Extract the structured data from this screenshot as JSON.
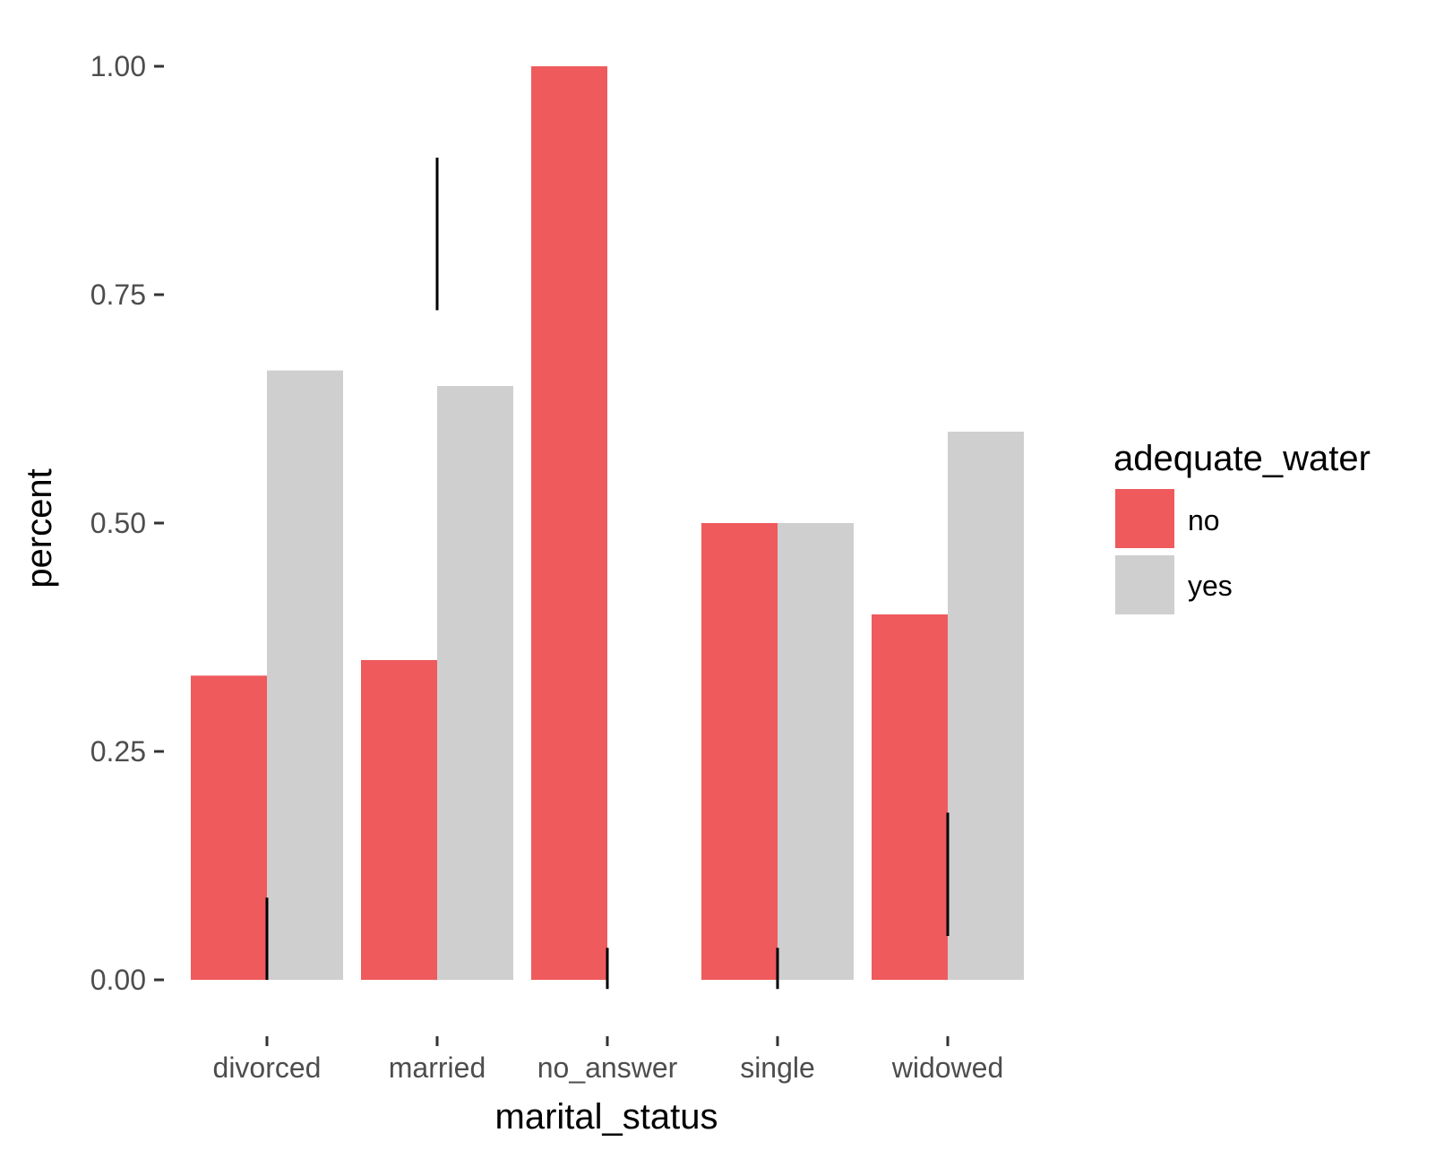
{
  "chart_data": {
    "type": "bar",
    "xlabel": "marital_status",
    "ylabel": "percent",
    "categories": [
      "divorced",
      "married",
      "no_answer",
      "single",
      "widowed"
    ],
    "series": [
      {
        "name": "no",
        "color": "#ef5a5c",
        "values": [
          0.333,
          0.35,
          1.0,
          0.5,
          0.4
        ]
      },
      {
        "name": "yes",
        "color": "#cfcfcf",
        "values": [
          0.667,
          0.65,
          null,
          0.5,
          0.6
        ]
      }
    ],
    "segments": [
      {
        "category": "divorced",
        "low": 0.0,
        "high": 0.09
      },
      {
        "category": "married",
        "low": 0.733,
        "high": 0.9
      },
      {
        "category": "no_answer",
        "low": -0.01,
        "high": 0.035
      },
      {
        "category": "single",
        "low": -0.01,
        "high": 0.035
      },
      {
        "category": "widowed",
        "low": 0.048,
        "high": 0.183
      }
    ],
    "yticks": [
      0,
      0.25,
      0.5,
      0.75,
      1.0
    ],
    "ytick_labels": [
      "0.00",
      "0.25",
      "0.50",
      "0.75",
      "1.00"
    ],
    "ylim": [
      -0.06,
      1.05
    ],
    "grid": false,
    "legend": {
      "title": "adequate_water",
      "position": "right"
    }
  }
}
